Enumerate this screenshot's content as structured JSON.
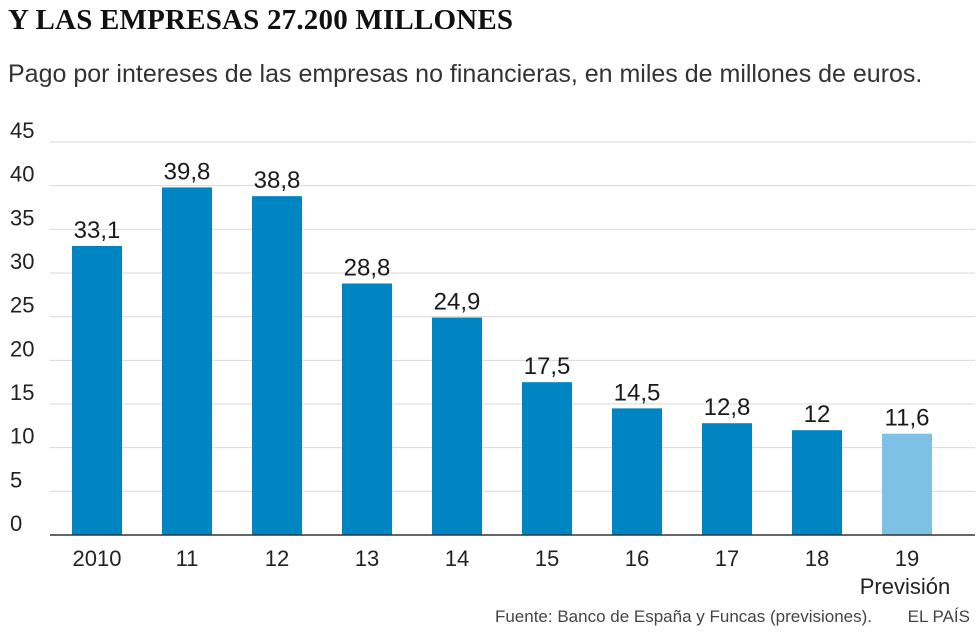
{
  "header": {
    "title": "Y LAS EMPRESAS 27.200 MILLONES",
    "subtitle": "Pago por intereses de las empresas no financieras, en miles de millones de euros."
  },
  "chart_data": {
    "type": "bar",
    "categories": [
      "2010",
      "11",
      "12",
      "13",
      "14",
      "15",
      "16",
      "17",
      "18",
      "19"
    ],
    "category_notes": [
      "",
      "",
      "",
      "",
      "",
      "",
      "",
      "",
      "",
      "Previsión"
    ],
    "values": [
      33.1,
      39.8,
      38.8,
      28.8,
      24.9,
      17.5,
      14.5,
      12.8,
      12,
      11.6
    ],
    "value_labels": [
      "33,1",
      "39,8",
      "38,8",
      "28,8",
      "24,9",
      "17,5",
      "14,5",
      "12,8",
      "12",
      "11,6"
    ],
    "forecast": [
      false,
      false,
      false,
      false,
      false,
      false,
      false,
      false,
      false,
      true
    ],
    "ylim": [
      0,
      45
    ],
    "yticks": [
      0,
      5,
      10,
      15,
      20,
      25,
      30,
      35,
      40,
      45
    ],
    "ytick_labels": [
      "0",
      "5",
      "10",
      "15",
      "20",
      "25",
      "30",
      "35",
      "40",
      "45"
    ],
    "grid": true,
    "colors": {
      "actual": "#0085c3",
      "forecast": "#7dc1e5",
      "grid": "#d9d9d9",
      "axis": "#333333"
    }
  },
  "footer": {
    "source": "Fuente: Banco de España y Funcas (previsiones).",
    "brand": "EL PAÍS"
  }
}
